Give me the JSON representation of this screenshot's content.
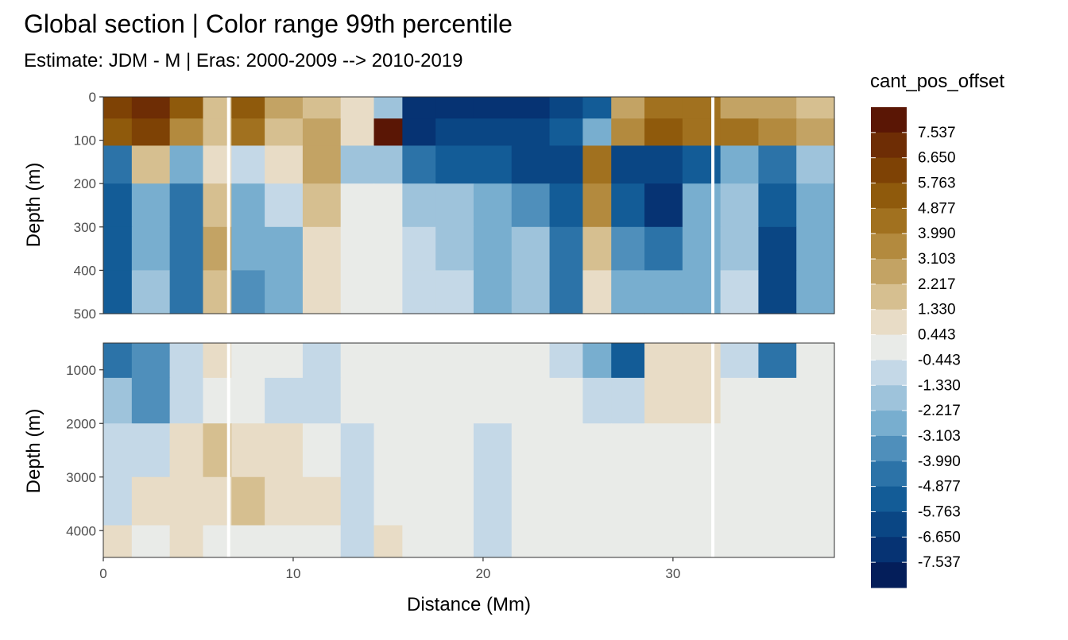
{
  "chart_data": {
    "type": "heatmap",
    "title": "Global section | Color range 99th percentile",
    "subtitle": "Estimate: JDM - M | Eras: 2000-2009 --> 2010-2019",
    "xlabel": "Distance (Mm)",
    "ylabel": "Depth (m)",
    "xlim": [
      0,
      38.5
    ],
    "x_ticks": [
      "0",
      "10",
      "20",
      "30"
    ],
    "x_tick_values": [
      0,
      10,
      20,
      30
    ],
    "panels": [
      {
        "name": "upper",
        "ylim": [
          0,
          500
        ],
        "y_reversed": true,
        "y_ticks": [
          "0",
          "100",
          "200",
          "300",
          "400",
          "500"
        ],
        "y_tick_values": [
          0,
          100,
          200,
          300,
          400,
          500
        ]
      },
      {
        "name": "lower",
        "ylim": [
          500,
          4500
        ],
        "y_reversed": true,
        "y_ticks": [
          "1000",
          "2000",
          "3000",
          "4000"
        ],
        "y_tick_values": [
          1000,
          2000,
          3000,
          4000
        ]
      }
    ],
    "legend": {
      "title": "cant_pos_offset",
      "position": "right",
      "labels": [
        "7.537",
        "6.650",
        "5.763",
        "4.877",
        "3.990",
        "3.103",
        "2.217",
        "1.330",
        "0.443",
        "-0.443",
        "-1.330",
        "-2.217",
        "-3.103",
        "-3.990",
        "-4.877",
        "-5.763",
        "-6.650",
        "-7.537"
      ],
      "colors": [
        "#5a1605",
        "#6e2d05",
        "#7e4205",
        "#8f5a0c",
        "#a1711f",
        "#b38a3e",
        "#c3a364",
        "#d6bf90",
        "#e8dcc6",
        "#e9ebe8",
        "#c4d8e7",
        "#9ec3db",
        "#78aecf",
        "#4f8fbb",
        "#2c73a8",
        "#135c97",
        "#0a4684",
        "#063373",
        "#041e5a"
      ]
    },
    "grid": true,
    "missing_data_gaps_x": [
      6.6,
      32.1
    ],
    "upper_columns": {
      "x": [
        0.5,
        2.5,
        4.5,
        6.0,
        7.5,
        9.5,
        11.5,
        13.5,
        15.0,
        16.5,
        18.5,
        20.5,
        22.5,
        24.5,
        26.0,
        27.5,
        29.5,
        31.5,
        33.5,
        35.5,
        37.5
      ],
      "depth": [
        25,
        75,
        150,
        250,
        350,
        450
      ],
      "values": [
        [
          6.0,
          7.0,
          5.5,
          2.0,
          5.5,
          3.0,
          2.0,
          1.0,
          -2.0,
          -7.0,
          -7.0,
          -7.0,
          -7.5,
          -6.0,
          -5.0,
          3.0,
          4.5,
          4.0,
          3.0,
          3.0,
          2.0
        ],
        [
          5.0,
          6.0,
          3.5,
          2.0,
          4.0,
          2.0,
          2.5,
          1.0,
          8.0,
          -7.0,
          -6.5,
          -6.5,
          -6.0,
          -5.5,
          -3.0,
          3.5,
          5.0,
          4.0,
          4.0,
          3.5,
          2.5
        ],
        [
          -4.5,
          2.0,
          -3.0,
          0.5,
          -1.0,
          1.0,
          3.0,
          -2.0,
          -1.5,
          -4.0,
          -5.0,
          -5.0,
          -6.0,
          -6.0,
          4.0,
          -6.0,
          -6.0,
          -5.0,
          -3.0,
          -4.0,
          -2.0
        ],
        [
          -5.0,
          -3.0,
          -4.0,
          2.0,
          -3.0,
          -1.0,
          2.0,
          0.0,
          0.0,
          -1.5,
          -2.0,
          -3.0,
          -3.5,
          -5.0,
          3.5,
          -5.0,
          -7.0,
          -3.0,
          -1.5,
          -5.5,
          -2.5
        ],
        [
          -5.5,
          -2.5,
          -4.5,
          2.5,
          -3.0,
          -2.5,
          1.0,
          0.0,
          0.0,
          -1.0,
          -1.5,
          -3.0,
          -2.0,
          -4.0,
          2.0,
          -3.5,
          -4.0,
          -2.5,
          -1.5,
          -6.0,
          -3.0
        ],
        [
          -5.5,
          -2.0,
          -4.0,
          2.0,
          -3.5,
          -3.0,
          0.5,
          0.0,
          0.0,
          -0.5,
          -1.0,
          -3.0,
          -1.5,
          -4.0,
          1.0,
          -2.5,
          -3.0,
          -2.5,
          -1.0,
          -6.0,
          -3.0
        ]
      ]
    },
    "lower_columns": {
      "x": [
        0.5,
        2.5,
        4.5,
        6.0,
        7.5,
        9.5,
        11.5,
        13.5,
        15.0,
        16.5,
        18.5,
        20.5,
        22.5,
        24.5,
        26.0,
        27.5,
        29.5,
        31.5,
        33.5,
        35.5,
        37.5
      ],
      "depth": [
        800,
        1500,
        2500,
        3500,
        4300
      ],
      "values": [
        [
          -4.0,
          -3.5,
          -1.0,
          0.5,
          0.0,
          0.0,
          -1.0,
          0.0,
          0.0,
          0.0,
          0.0,
          0.0,
          0.0,
          -1.0,
          -3.0,
          -5.0,
          0.5,
          1.0,
          -1.0,
          -4.0,
          0.0
        ],
        [
          -2.0,
          -3.5,
          -1.0,
          0.0,
          0.0,
          -0.5,
          -0.5,
          0.0,
          0.0,
          0.0,
          0.0,
          0.0,
          0.0,
          0.0,
          -1.0,
          -1.0,
          0.5,
          1.0,
          0.0,
          0.0,
          0.0
        ],
        [
          -1.0,
          -1.0,
          1.0,
          1.5,
          1.0,
          1.0,
          0.0,
          -0.5,
          0.0,
          0.0,
          0.0,
          -0.5,
          0.0,
          0.0,
          0.0,
          0.0,
          0.0,
          0.0,
          0.0,
          0.0,
          0.0
        ],
        [
          -1.0,
          1.0,
          0.5,
          1.0,
          1.5,
          1.0,
          0.5,
          -0.5,
          0.0,
          0.0,
          0.0,
          -0.5,
          0.0,
          0.0,
          0.0,
          0.0,
          0.0,
          0.0,
          0.0,
          0.0,
          0.0
        ],
        [
          0.5,
          0.0,
          1.0,
          0.0,
          0.0,
          0.0,
          0.0,
          -0.5,
          0.5,
          0.0,
          0.0,
          -0.5,
          0.0,
          0.0,
          0.0,
          0.0,
          0.0,
          0.0,
          0.0,
          0.0,
          0.0
        ]
      ]
    }
  }
}
